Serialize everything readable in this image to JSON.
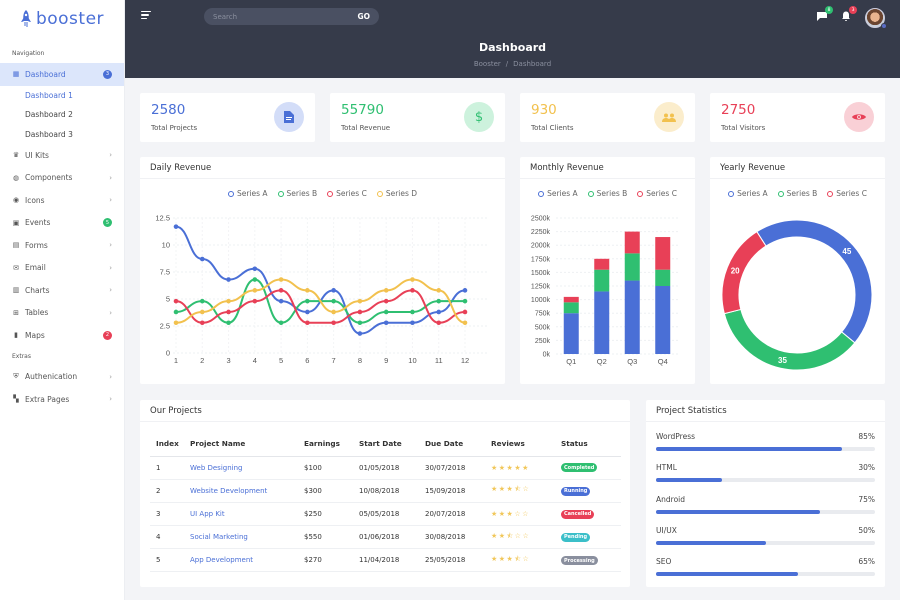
{
  "brand": {
    "name": "booster",
    "color": "#4a6fd6"
  },
  "sidebar": {
    "navigation_caption": "Navigation",
    "extras_caption": "Extras",
    "dashboard": {
      "label": "Dashboard",
      "icon": "dashboard-icon",
      "badge": "3",
      "badge_color": "#4a6fd6"
    },
    "sub_items": [
      "Dashboard 1",
      "Dashboard 2",
      "Dashboard 3"
    ],
    "items": [
      {
        "label": "UI Kits",
        "icon": "ui-kits-icon"
      },
      {
        "label": "Components",
        "icon": "components-icon"
      },
      {
        "label": "Icons",
        "icon": "icons-icon"
      },
      {
        "label": "Events",
        "icon": "calendar-icon",
        "badge": "5",
        "badge_color": "#2fbf71"
      },
      {
        "label": "Forms",
        "icon": "forms-icon"
      },
      {
        "label": "Email",
        "icon": "email-icon"
      },
      {
        "label": "Charts",
        "icon": "charts-icon"
      },
      {
        "label": "Tables",
        "icon": "tables-icon"
      },
      {
        "label": "Maps",
        "icon": "map-icon",
        "badge": "2",
        "badge_color": "#e84057"
      }
    ],
    "extras": [
      {
        "label": "Authenication",
        "icon": "shield-icon"
      },
      {
        "label": "Extra Pages",
        "icon": "pages-icon"
      }
    ]
  },
  "topbar": {
    "search_placeholder": "Search",
    "go_label": "GO",
    "messages_badge": "8",
    "notifications_badge": "3"
  },
  "header": {
    "title": "Dashboard",
    "breadcrumb": [
      "Booster",
      "Dashboard"
    ]
  },
  "stats": [
    {
      "value": "2580",
      "label": "Total Projects",
      "color": "#4a6fd6",
      "bg": "#d3ddf8",
      "icon": "document-icon"
    },
    {
      "value": "55790",
      "label": "Total Revenue",
      "color": "#2fbf71",
      "bg": "#cdf2dd",
      "icon": "dollar-icon"
    },
    {
      "value": "930",
      "label": "Total Clients",
      "color": "#f2c14e",
      "bg": "#fbedcc",
      "icon": "users-icon"
    },
    {
      "value": "2750",
      "label": "Total Visitors",
      "color": "#e84057",
      "bg": "#f9d0d6",
      "icon": "eye-icon"
    }
  ],
  "charts": {
    "daily_title": "Daily Revenue",
    "monthly_title": "Monthly Revenue",
    "yearly_title": "Yearly Revenue",
    "legend_a": "Series A",
    "legend_b": "Series B",
    "legend_c": "Series C",
    "legend_d": "Series D"
  },
  "chart_data": [
    {
      "type": "line",
      "title": "Daily Revenue",
      "x": [
        1,
        2,
        3,
        4,
        5,
        6,
        7,
        8,
        9,
        10,
        11,
        12
      ],
      "ylim": [
        0,
        12.5
      ],
      "yticks": [
        0,
        2.5,
        5,
        7.5,
        10,
        12.5
      ],
      "legend_position": "top",
      "series": [
        {
          "name": "Series A",
          "color": "#4a6fd6",
          "values": [
            11.7,
            8.7,
            6.8,
            7.8,
            4.8,
            3.8,
            5.8,
            1.8,
            2.8,
            2.8,
            3.8,
            5.8
          ]
        },
        {
          "name": "Series B",
          "color": "#2fbf71",
          "values": [
            3.8,
            4.8,
            2.8,
            6.8,
            2.8,
            4.8,
            4.8,
            2.8,
            3.8,
            3.8,
            4.8,
            4.8
          ]
        },
        {
          "name": "Series C",
          "color": "#e84057",
          "values": [
            4.8,
            2.8,
            3.8,
            4.8,
            5.8,
            2.8,
            2.8,
            3.8,
            4.8,
            5.8,
            2.8,
            3.8
          ]
        },
        {
          "name": "Series D",
          "color": "#f2c14e",
          "values": [
            2.8,
            3.8,
            4.8,
            5.8,
            6.8,
            5.8,
            3.8,
            4.8,
            5.8,
            6.8,
            5.8,
            2.8
          ]
        }
      ]
    },
    {
      "type": "bar",
      "stacked": true,
      "title": "Monthly Revenue",
      "categories": [
        "Q1",
        "Q2",
        "Q3",
        "Q4"
      ],
      "ylim": [
        0,
        2500
      ],
      "yticks": [
        "0k",
        "250k",
        "500k",
        "750k",
        "1000k",
        "1250k",
        "1500k",
        "1750k",
        "2000k",
        "2250k",
        "2500k"
      ],
      "series": [
        {
          "name": "Series A",
          "color": "#4a6fd6",
          "values": [
            750,
            1150,
            1350,
            1250
          ]
        },
        {
          "name": "Series B",
          "color": "#2fbf71",
          "values": [
            200,
            400,
            500,
            300
          ]
        },
        {
          "name": "Series C",
          "color": "#e84057",
          "values": [
            100,
            200,
            400,
            600
          ]
        }
      ]
    },
    {
      "type": "pie",
      "donut": true,
      "title": "Yearly Revenue",
      "categories": [
        "Series A",
        "Series B",
        "Series C"
      ],
      "values": [
        45,
        35,
        20
      ],
      "colors": [
        "#4a6fd6",
        "#2fbf71",
        "#e84057"
      ]
    }
  ],
  "projects": {
    "title": "Our Projects",
    "columns": [
      "Index",
      "Project Name",
      "Earnings",
      "Start Date",
      "Due Date",
      "Reviews",
      "Status"
    ],
    "rows": [
      {
        "index": "1",
        "name": "Web Designing",
        "earnings": "$100",
        "start": "01/05/2018",
        "due": "30/07/2018",
        "stars": "★★★★★",
        "status": "Completed",
        "status_color": "#2fbf71"
      },
      {
        "index": "2",
        "name": "Website Development",
        "earnings": "$300",
        "start": "10/08/2018",
        "due": "15/09/2018",
        "stars": "★★★⯪☆",
        "status": "Running",
        "status_color": "#4a6fd6"
      },
      {
        "index": "3",
        "name": "UI App Kit",
        "earnings": "$250",
        "start": "05/05/2018",
        "due": "20/07/2018",
        "stars": "★★★☆☆",
        "status": "Cancelled",
        "status_color": "#e84057"
      },
      {
        "index": "4",
        "name": "Social Marketing",
        "earnings": "$550",
        "start": "01/06/2018",
        "due": "30/08/2018",
        "stars": "★★⯪☆☆",
        "status": "Pending",
        "status_color": "#3bbfc9"
      },
      {
        "index": "5",
        "name": "App Development",
        "earnings": "$270",
        "start": "11/04/2018",
        "due": "25/05/2018",
        "stars": "★★★⯪☆",
        "status": "Processing",
        "status_color": "#8a8f9e"
      }
    ]
  },
  "project_stats": {
    "title": "Project Statistics",
    "items": [
      {
        "label": "WordPress",
        "value": 85,
        "pct": "85%"
      },
      {
        "label": "HTML",
        "value": 30,
        "pct": "30%"
      },
      {
        "label": "Android",
        "value": 75,
        "pct": "75%"
      },
      {
        "label": "UI/UX",
        "value": 50,
        "pct": "50%"
      },
      {
        "label": "SEO",
        "value": 65,
        "pct": "65%"
      }
    ]
  }
}
